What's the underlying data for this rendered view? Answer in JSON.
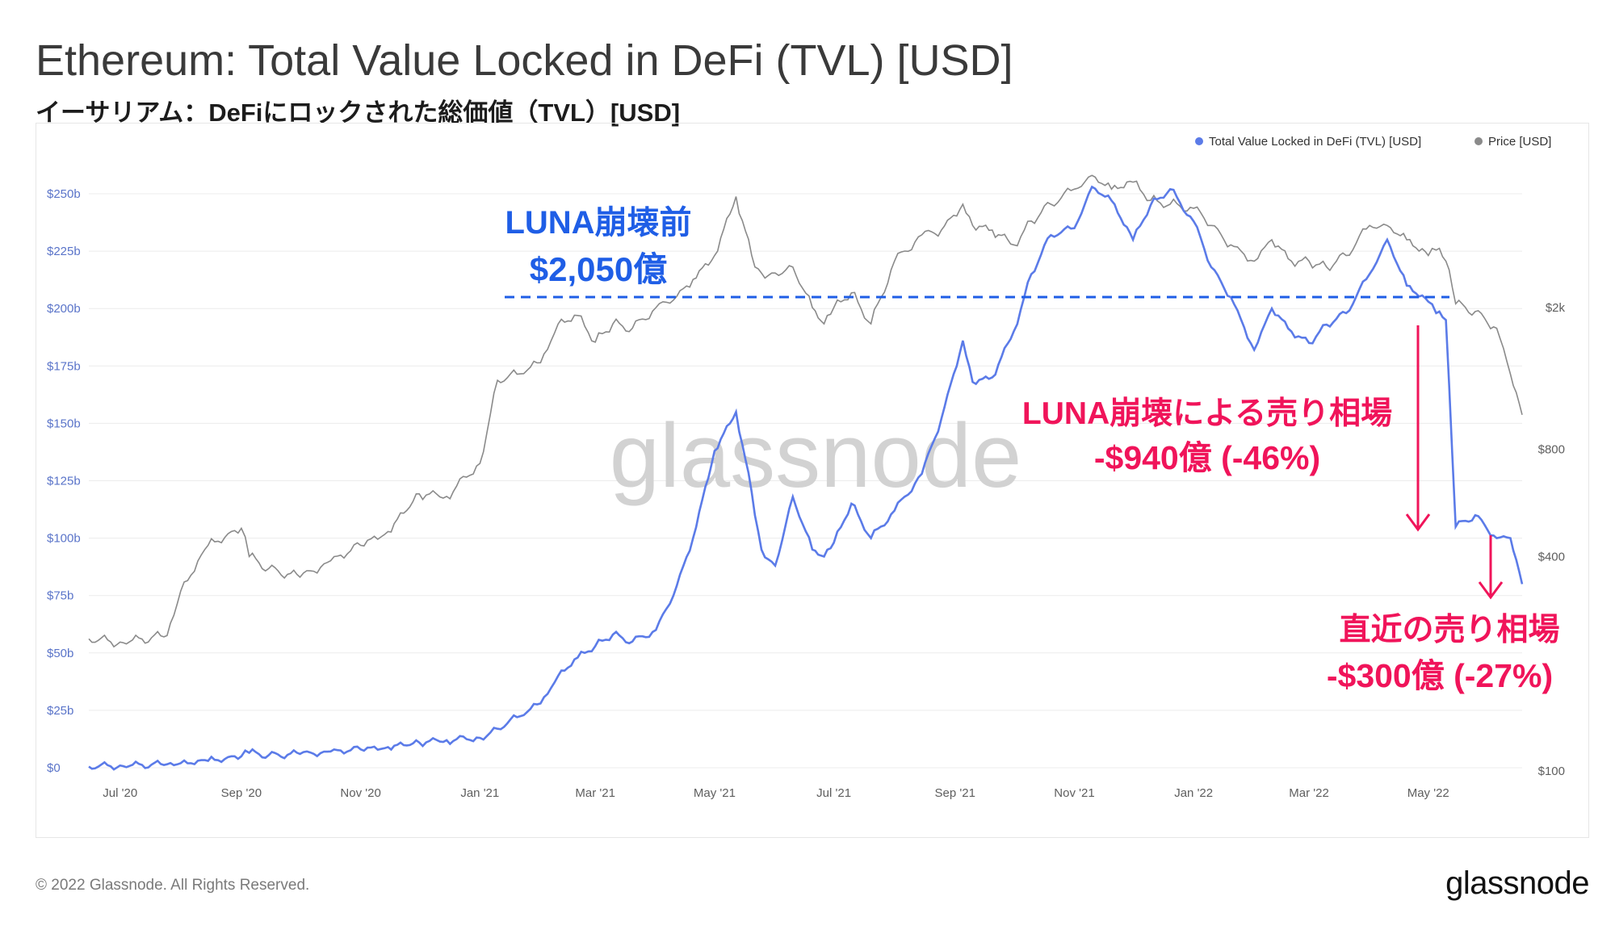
{
  "title": "Ethereum: Total Value Locked in DeFi (TVL) [USD]",
  "subtitle": "イーサリアム：DeFiにロックされた総価値（TVL）[USD]",
  "footer": "© 2022 Glassnode. All Rights Reserved.",
  "logo": "glassnode",
  "watermark": "glassnode",
  "colors": {
    "tvl": "#5b7be8",
    "price": "#8a8a8a",
    "luna_pre": "#1f5ee6",
    "sell": "#f0145a"
  },
  "chart_data": {
    "type": "line",
    "title": "Ethereum: Total Value Locked in DeFi (TVL) [USD]",
    "legend": [
      "Total Value Locked in DeFi (TVL) [USD]",
      "Price [USD]"
    ],
    "legend_position": "top-right",
    "x_ticks": [
      "Jul '20",
      "Sep '20",
      "Nov '20",
      "Jan '21",
      "Mar '21",
      "May '21",
      "Jul '21",
      "Sep '21",
      "Nov '21",
      "Jan '22",
      "Mar '22",
      "May '22"
    ],
    "y_left_ticks": [
      "$0",
      "$25b",
      "$50b",
      "$75b",
      "$100b",
      "$125b",
      "$150b",
      "$175b",
      "$200b",
      "$225b",
      "$250b"
    ],
    "y_left_range": [
      0,
      250
    ],
    "y_right_ticks": [
      "$100",
      "$400",
      "$800",
      "$2k"
    ],
    "y_right_values": [
      100,
      400,
      800,
      2000
    ],
    "y_right_scale": "log",
    "x": [
      "2020-06-15",
      "2020-07-01",
      "2020-07-25",
      "2020-08-01",
      "2020-08-15",
      "2020-09-01",
      "2020-09-05",
      "2020-09-15",
      "2020-10-01",
      "2020-10-15",
      "2020-11-01",
      "2020-11-15",
      "2020-12-01",
      "2020-12-15",
      "2021-01-01",
      "2021-01-10",
      "2021-01-20",
      "2021-02-01",
      "2021-02-10",
      "2021-02-20",
      "2021-03-01",
      "2021-03-10",
      "2021-03-20",
      "2021-04-01",
      "2021-04-10",
      "2021-04-20",
      "2021-05-01",
      "2021-05-12",
      "2021-05-20",
      "2021-05-25",
      "2021-06-01",
      "2021-06-10",
      "2021-06-20",
      "2021-06-26",
      "2021-07-01",
      "2021-07-10",
      "2021-07-20",
      "2021-08-01",
      "2021-08-15",
      "2021-08-25",
      "2021-09-05",
      "2021-09-10",
      "2021-09-20",
      "2021-10-01",
      "2021-10-10",
      "2021-10-20",
      "2021-11-01",
      "2021-11-10",
      "2021-11-20",
      "2021-12-01",
      "2021-12-10",
      "2021-12-20",
      "2022-01-01",
      "2022-01-10",
      "2022-01-20",
      "2022-02-01",
      "2022-02-10",
      "2022-02-20",
      "2022-03-01",
      "2022-03-10",
      "2022-03-20",
      "2022-04-01",
      "2022-04-10",
      "2022-04-20",
      "2022-05-01",
      "2022-05-05",
      "2022-05-10",
      "2022-05-15",
      "2022-05-25",
      "2022-06-05",
      "2022-06-12",
      "2022-06-18"
    ],
    "series": [
      {
        "name": "Total Value Locked in DeFi (TVL) [USD]",
        "unit": "b",
        "values": [
          0.5,
          1,
          1.5,
          2,
          3,
          5,
          6.5,
          5.5,
          6,
          7,
          8,
          9,
          11,
          12,
          13,
          17,
          22,
          28,
          40,
          48,
          53,
          58,
          55,
          60,
          75,
          100,
          138,
          155,
          120,
          95,
          88,
          118,
          95,
          92,
          98,
          115,
          100,
          112,
          128,
          152,
          186,
          168,
          170,
          190,
          215,
          232,
          235,
          253,
          247,
          230,
          245,
          252,
          238,
          218,
          205,
          182,
          200,
          190,
          185,
          193,
          198,
          215,
          230,
          210,
          203,
          198,
          195,
          105,
          110,
          100,
          100,
          80
        ]
      },
      {
        "name": "Price [USD]",
        "unit": "USD",
        "values": [
          235,
          230,
          240,
          320,
          430,
          480,
          400,
          370,
          350,
          385,
          430,
          470,
          600,
          590,
          730,
          1250,
          1300,
          1400,
          1800,
          1900,
          1600,
          1800,
          1750,
          2000,
          2100,
          2400,
          2800,
          4100,
          2800,
          2500,
          2500,
          2600,
          2000,
          1800,
          2000,
          2200,
          1800,
          2700,
          3200,
          3300,
          3900,
          3400,
          3300,
          3000,
          3500,
          3900,
          4300,
          4700,
          4300,
          4500,
          4000,
          3900,
          3800,
          3400,
          3000,
          2700,
          3100,
          2700,
          2700,
          2600,
          2800,
          3400,
          3400,
          3100,
          2800,
          2900,
          2700,
          2050,
          1950,
          1750,
          1300,
          1000
        ]
      }
    ],
    "annotations": {
      "luna_pre_label": "LUNA崩壊前",
      "luna_pre_value": "$2,050億",
      "luna_pre_level": 205,
      "sell1_label": "LUNA崩壊による売り相場",
      "sell1_value": "-$940億 (-46%)",
      "sell2_label": "直近の売り相場",
      "sell2_value": "-$300億 (-27%)"
    }
  }
}
